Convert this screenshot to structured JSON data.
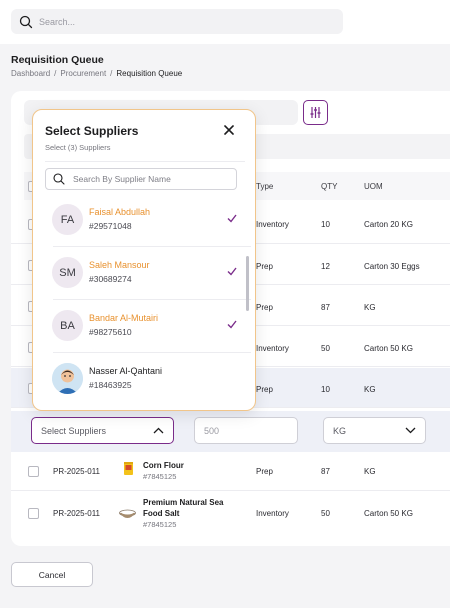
{
  "topbar": {
    "search_placeholder": "Search..."
  },
  "page": {
    "title": "Requisition Queue",
    "breadcrumb": [
      "Dashboard",
      "/",
      "Procurement",
      "/",
      "Requisition Queue"
    ]
  },
  "table": {
    "headers": {
      "type": "Type",
      "qty": "QTY",
      "uom": "UOM"
    },
    "rows": [
      {
        "type": "Inventory",
        "qty": "10",
        "uom": "Carton 20 KG"
      },
      {
        "type": "Prep",
        "qty": "12",
        "uom": "Carton 30 Eggs"
      },
      {
        "type": "Prep",
        "qty": "87",
        "uom": "KG"
      },
      {
        "type": "Inventory",
        "qty": "50",
        "uom": "Carton 50 KG"
      },
      {
        "type": "Prep",
        "qty": "10",
        "uom": "KG"
      }
    ],
    "edit_row": {
      "suppliers_placeholder": "Select Suppliers",
      "qty_placeholder": "500",
      "uom_value": "KG"
    },
    "bottom_rows": [
      {
        "id": "PR-2025-011",
        "product": "Corn Flour",
        "sku": "#7845125",
        "type": "Prep",
        "qty": "87",
        "uom": "KG",
        "icon": "corn-flour-icon"
      },
      {
        "id": "PR-2025-011",
        "product_line1": "Premium Natural Sea",
        "product_line2": "Food Salt",
        "sku": "#7845125",
        "type": "Inventory",
        "qty": "50",
        "uom": "Carton 50 KG",
        "icon": "salt-bowl-icon"
      }
    ]
  },
  "footer": {
    "cancel_label": "Cancel"
  },
  "modal": {
    "title": "Select Suppliers",
    "subtitle": "Select (3) Suppliers",
    "search_placeholder": "Search By Supplier Name",
    "suppliers": [
      {
        "initials": "FA",
        "name": "Faisal Abdullah",
        "id": "#29571048",
        "selected": true
      },
      {
        "initials": "SM",
        "name": "Saleh Mansour",
        "id": "#30689274",
        "selected": true
      },
      {
        "initials": "BA",
        "name": "Bandar Al-Mutairi",
        "id": "#98275610",
        "selected": true
      },
      {
        "initials": "",
        "name": "Nasser Al-Qahtani",
        "id": "#18463925",
        "selected": false,
        "avatar": "photo"
      }
    ]
  },
  "colors": {
    "accent": "#7a2c8a",
    "highlight": "#e8912e",
    "modal_border": "#f1c58a"
  }
}
